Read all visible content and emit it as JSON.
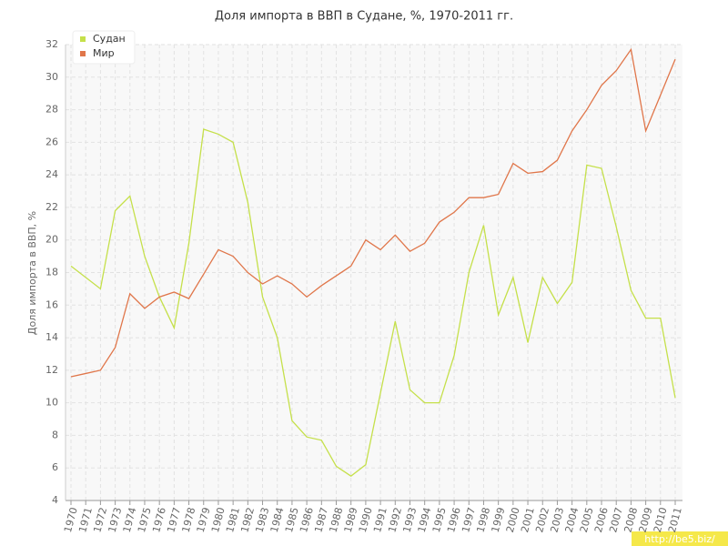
{
  "chart_data": {
    "type": "line",
    "title": "Доля импорта в ВВП в Судане, %, 1970-2011 гг.",
    "y_label": "Доля импорта в ВВП, %",
    "categories": [
      "1970",
      "1971",
      "1972",
      "1973",
      "1974",
      "1975",
      "1976",
      "1977",
      "1978",
      "1979",
      "1980",
      "1981",
      "1982",
      "1983",
      "1984",
      "1985",
      "1986",
      "1987",
      "1988",
      "1989",
      "1990",
      "1991",
      "1992",
      "1993",
      "1994",
      "1995",
      "1996",
      "1997",
      "1998",
      "1999",
      "2000",
      "2001",
      "2002",
      "2003",
      "2004",
      "2005",
      "2006",
      "2007",
      "2008",
      "2009",
      "2010",
      "2011"
    ],
    "series": [
      {
        "name": "Судан",
        "color": "#c5e04a",
        "values": [
          18.4,
          17.7,
          17.0,
          21.8,
          22.7,
          19.0,
          16.5,
          14.6,
          19.8,
          26.8,
          26.5,
          26.0,
          22.3,
          16.5,
          14.0,
          8.9,
          7.9,
          7.7,
          6.1,
          5.5,
          6.2,
          10.6,
          15.0,
          10.8,
          10.0,
          10.0,
          12.9,
          18.0,
          20.9,
          15.4,
          17.7,
          13.7,
          17.7,
          16.1,
          17.4,
          24.6,
          24.4,
          20.8,
          16.9,
          15.2,
          15.2,
          10.3
        ]
      },
      {
        "name": "Мир",
        "color": "#e0764a",
        "values": [
          11.6,
          11.8,
          12.0,
          13.4,
          16.7,
          15.8,
          16.5,
          16.8,
          16.4,
          17.9,
          19.4,
          19.0,
          18.0,
          17.3,
          17.8,
          17.3,
          16.5,
          17.2,
          17.8,
          18.4,
          20.0,
          19.4,
          20.3,
          19.3,
          19.8,
          21.1,
          21.7,
          22.6,
          22.6,
          22.8,
          24.7,
          24.1,
          24.2,
          24.9,
          26.7,
          28.0,
          29.5,
          30.4,
          31.7,
          26.7,
          28.9,
          31.1
        ]
      }
    ],
    "ylim": [
      4,
      32
    ],
    "yticks": [
      4,
      6,
      8,
      10,
      12,
      14,
      16,
      18,
      20,
      22,
      24,
      26,
      28,
      30,
      32
    ],
    "grid": true,
    "legend": "top-left",
    "watermark": "http://be5.biz/"
  }
}
